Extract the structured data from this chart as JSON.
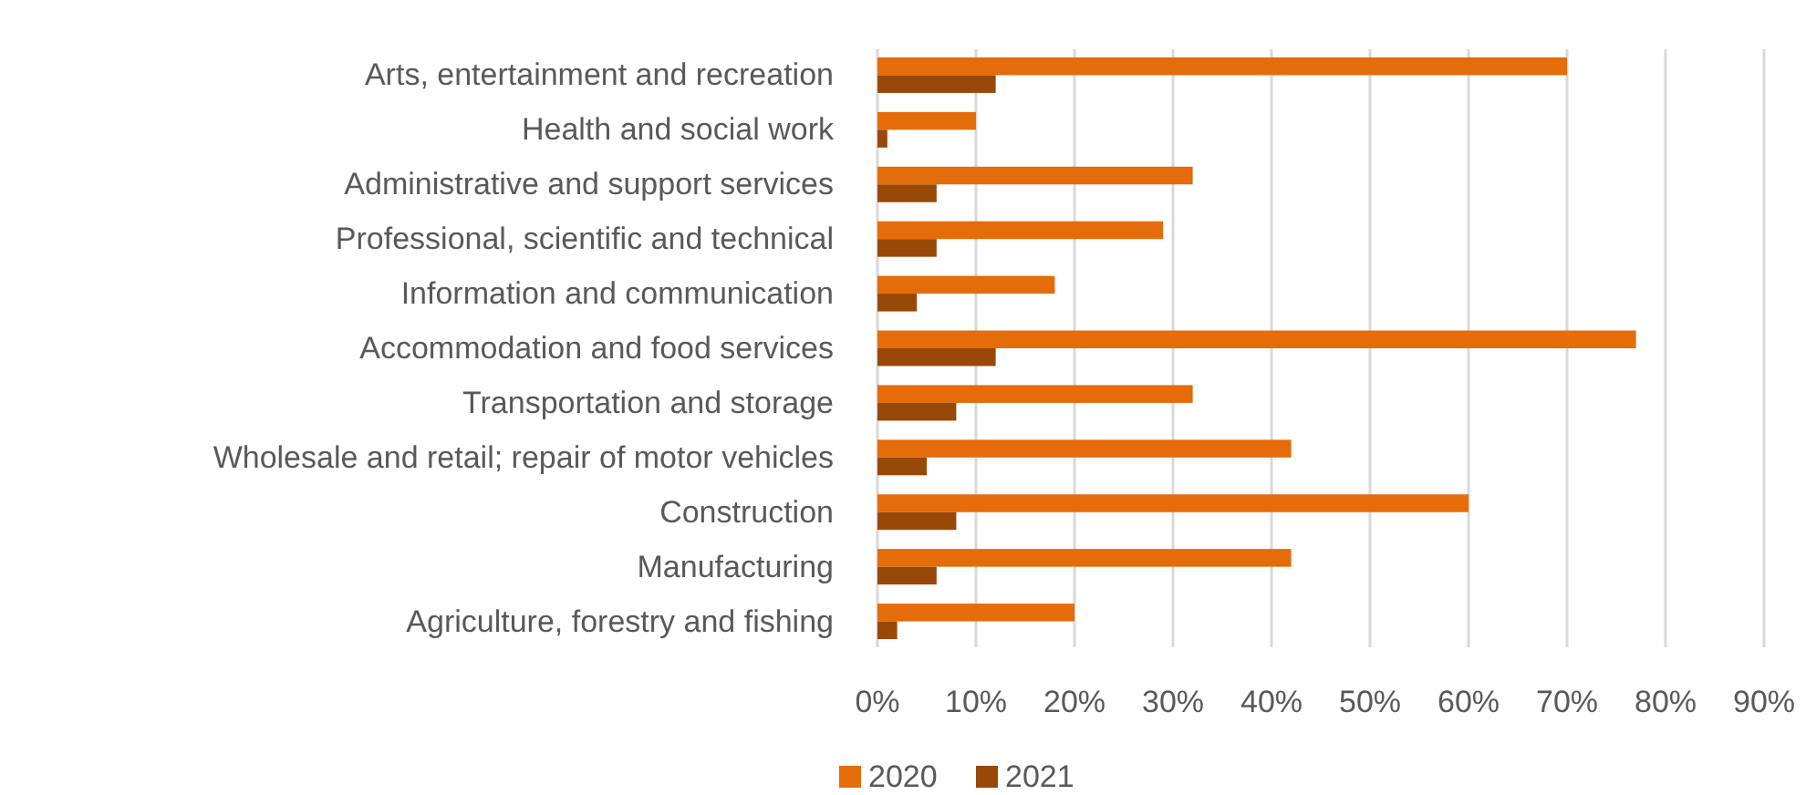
{
  "chart_data": {
    "type": "bar",
    "orientation": "horizontal",
    "categories": [
      "Arts, entertainment and recreation",
      "Health and social work",
      "Administrative and support services",
      "Professional, scientific and technical",
      "Information and communication",
      "Accommodation and food services",
      "Transportation and storage",
      "Wholesale and retail; repair of motor vehicles",
      "Construction",
      "Manufacturing",
      "Agriculture, forestry and fishing"
    ],
    "series": [
      {
        "name": "2020",
        "color": "#e46c0a",
        "values": [
          70,
          10,
          32,
          29,
          18,
          77,
          32,
          42,
          60,
          42,
          20
        ]
      },
      {
        "name": "2021",
        "color": "#984807",
        "values": [
          12,
          1,
          6,
          6,
          4,
          12,
          8,
          5,
          8,
          6,
          2
        ]
      }
    ],
    "xlim": [
      0,
      90
    ],
    "xticks": [
      {
        "value": 0,
        "label": "0%"
      },
      {
        "value": 10,
        "label": "10%"
      },
      {
        "value": 20,
        "label": "20%"
      },
      {
        "value": 30,
        "label": "30%"
      },
      {
        "value": 40,
        "label": "40%"
      },
      {
        "value": 50,
        "label": "50%"
      },
      {
        "value": 60,
        "label": "60%"
      },
      {
        "value": 70,
        "label": "70%"
      },
      {
        "value": 80,
        "label": "80%"
      },
      {
        "value": 90,
        "label": "90%"
      }
    ],
    "grid": "x",
    "legend": "bottom"
  }
}
